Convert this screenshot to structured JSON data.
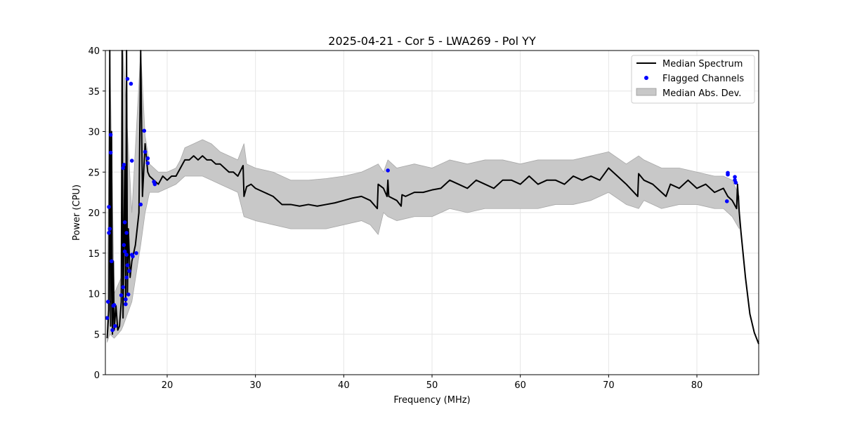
{
  "chart_data": {
    "type": "line",
    "title": "2025-04-21 - Cor 5 - LWA269 - Pol YY",
    "xlabel": "Frequency (MHz)",
    "ylabel": "Power (CPU)",
    "xlim": [
      13.0,
      87.0
    ],
    "ylim": [
      0,
      40
    ],
    "xticks": [
      20,
      30,
      40,
      50,
      60,
      70,
      80
    ],
    "yticks": [
      0,
      5,
      10,
      15,
      20,
      25,
      30,
      35,
      40
    ],
    "grid": true,
    "legend_position": "upper right",
    "legend": [
      {
        "label": "Median Spectrum",
        "kind": "line",
        "color": "#000000"
      },
      {
        "label": "Flagged Channels",
        "kind": "points",
        "color": "#0000ff"
      },
      {
        "label": "Median Abs. Dev.",
        "kind": "band",
        "color": "#c8c8c8"
      }
    ],
    "series": [
      {
        "name": "Median Spectrum",
        "color": "#000000",
        "points": [
          [
            13.2,
            4.5
          ],
          [
            13.4,
            8.0
          ],
          [
            13.5,
            40.0
          ],
          [
            13.6,
            6.0
          ],
          [
            13.7,
            30.0
          ],
          [
            13.8,
            5.0
          ],
          [
            13.9,
            14.0
          ],
          [
            14.0,
            5.5
          ],
          [
            14.2,
            8.5
          ],
          [
            14.4,
            5.5
          ],
          [
            14.6,
            6.0
          ],
          [
            14.8,
            9.0
          ],
          [
            14.9,
            40.0
          ],
          [
            15.0,
            7.0
          ],
          [
            15.2,
            26.0
          ],
          [
            15.3,
            9.0
          ],
          [
            15.4,
            40.0
          ],
          [
            15.5,
            10.0
          ],
          [
            15.6,
            18.0
          ],
          [
            15.8,
            12.0
          ],
          [
            16.0,
            14.0
          ],
          [
            16.4,
            16.0
          ],
          [
            16.8,
            20.0
          ],
          [
            17.0,
            40.0
          ],
          [
            17.2,
            22.0
          ],
          [
            17.5,
            28.5
          ],
          [
            17.8,
            25.0
          ],
          [
            18.0,
            24.5
          ],
          [
            18.5,
            24.0
          ],
          [
            19.0,
            23.5
          ],
          [
            19.5,
            24.5
          ],
          [
            20.0,
            24.0
          ],
          [
            20.5,
            24.5
          ],
          [
            21.0,
            24.5
          ],
          [
            21.5,
            25.5
          ],
          [
            22.0,
            26.5
          ],
          [
            22.5,
            26.5
          ],
          [
            23.0,
            27.0
          ],
          [
            23.5,
            26.5
          ],
          [
            24.0,
            27.0
          ],
          [
            24.5,
            26.5
          ],
          [
            25.0,
            26.5
          ],
          [
            25.5,
            26.0
          ],
          [
            26.0,
            26.0
          ],
          [
            26.5,
            25.5
          ],
          [
            27.0,
            25.0
          ],
          [
            27.5,
            25.0
          ],
          [
            28.0,
            24.5
          ],
          [
            28.6,
            25.8
          ],
          [
            28.7,
            22.0
          ],
          [
            29.0,
            23.2
          ],
          [
            29.5,
            23.5
          ],
          [
            30.0,
            23.0
          ],
          [
            31.0,
            22.5
          ],
          [
            32.0,
            22.0
          ],
          [
            33.0,
            21.0
          ],
          [
            34.0,
            21.0
          ],
          [
            35.0,
            20.8
          ],
          [
            36.0,
            21.0
          ],
          [
            37.0,
            20.8
          ],
          [
            38.0,
            21.0
          ],
          [
            39.0,
            21.2
          ],
          [
            40.0,
            21.5
          ],
          [
            41.0,
            21.8
          ],
          [
            42.0,
            22.0
          ],
          [
            43.0,
            21.5
          ],
          [
            43.8,
            20.5
          ],
          [
            43.9,
            23.5
          ],
          [
            44.5,
            23.0
          ],
          [
            44.9,
            22.0
          ],
          [
            45.0,
            24.0
          ],
          [
            45.1,
            22.0
          ],
          [
            46.0,
            21.5
          ],
          [
            46.5,
            20.8
          ],
          [
            46.6,
            22.2
          ],
          [
            47.0,
            22.0
          ],
          [
            48.0,
            22.5
          ],
          [
            49.0,
            22.5
          ],
          [
            50.0,
            22.8
          ],
          [
            51.0,
            23.0
          ],
          [
            52.0,
            24.0
          ],
          [
            53.0,
            23.5
          ],
          [
            54.0,
            23.0
          ],
          [
            55.0,
            24.0
          ],
          [
            56.0,
            23.5
          ],
          [
            57.0,
            23.0
          ],
          [
            58.0,
            24.0
          ],
          [
            59.0,
            24.0
          ],
          [
            60.0,
            23.5
          ],
          [
            61.0,
            24.5
          ],
          [
            62.0,
            23.5
          ],
          [
            63.0,
            24.0
          ],
          [
            64.0,
            24.0
          ],
          [
            65.0,
            23.5
          ],
          [
            66.0,
            24.5
          ],
          [
            67.0,
            24.0
          ],
          [
            68.0,
            24.5
          ],
          [
            69.0,
            24.0
          ],
          [
            70.0,
            25.5
          ],
          [
            71.0,
            24.5
          ],
          [
            72.0,
            23.5
          ],
          [
            73.3,
            22.0
          ],
          [
            73.4,
            24.8
          ],
          [
            74.0,
            24.0
          ],
          [
            75.0,
            23.5
          ],
          [
            76.0,
            22.5
          ],
          [
            76.5,
            22.0
          ],
          [
            77.0,
            23.5
          ],
          [
            78.0,
            23.0
          ],
          [
            79.0,
            24.0
          ],
          [
            80.0,
            23.0
          ],
          [
            81.0,
            23.5
          ],
          [
            82.0,
            22.5
          ],
          [
            83.0,
            23.0
          ],
          [
            83.5,
            22.0
          ],
          [
            84.0,
            21.5
          ],
          [
            84.5,
            20.5
          ],
          [
            84.6,
            23.5
          ],
          [
            84.8,
            20.0
          ],
          [
            85.0,
            17.5
          ],
          [
            85.5,
            12.0
          ],
          [
            86.0,
            7.5
          ],
          [
            86.5,
            5.2
          ],
          [
            87.0,
            3.8
          ]
        ]
      },
      {
        "name": "Flagged Channels",
        "color": "#0000ff",
        "points": [
          [
            13.2,
            7.0
          ],
          [
            13.3,
            9.0
          ],
          [
            13.4,
            17.5
          ],
          [
            13.4,
            20.7
          ],
          [
            13.5,
            18.0
          ],
          [
            13.6,
            29.6
          ],
          [
            13.6,
            27.4
          ],
          [
            13.7,
            14.0
          ],
          [
            13.8,
            5.5
          ],
          [
            13.9,
            8.5
          ],
          [
            14.0,
            8.6
          ],
          [
            14.1,
            6.0
          ],
          [
            14.8,
            9.8
          ],
          [
            15.0,
            10.8
          ],
          [
            15.0,
            25.5
          ],
          [
            15.1,
            25.9
          ],
          [
            15.1,
            16.0
          ],
          [
            15.2,
            15.2
          ],
          [
            15.2,
            18.8
          ],
          [
            15.3,
            8.7
          ],
          [
            15.3,
            9.3
          ],
          [
            15.4,
            14.8
          ],
          [
            15.4,
            17.5
          ],
          [
            15.4,
            12.0
          ],
          [
            15.5,
            36.5
          ],
          [
            15.5,
            13.5
          ],
          [
            15.6,
            9.9
          ],
          [
            15.7,
            12.8
          ],
          [
            15.9,
            35.9
          ],
          [
            16.0,
            26.4
          ],
          [
            16.0,
            14.8
          ],
          [
            16.1,
            14.6
          ],
          [
            16.5,
            15.0
          ],
          [
            17.0,
            21.0
          ],
          [
            17.4,
            30.1
          ],
          [
            17.5,
            27.5
          ],
          [
            17.8,
            26.7
          ],
          [
            17.8,
            26.1
          ],
          [
            18.5,
            23.8
          ],
          [
            18.6,
            23.5
          ],
          [
            45.0,
            25.2
          ],
          [
            83.5,
            24.9
          ],
          [
            83.5,
            24.7
          ],
          [
            83.4,
            21.4
          ],
          [
            84.3,
            24.4
          ],
          [
            84.3,
            24.0
          ],
          [
            84.4,
            23.7
          ]
        ]
      },
      {
        "name": "Median Abs. Dev.",
        "color": "#c8c8c8",
        "upper": [
          [
            13.2,
            6.0
          ],
          [
            13.5,
            40.0
          ],
          [
            14.0,
            10.0
          ],
          [
            14.8,
            12.0
          ],
          [
            15.0,
            40.0
          ],
          [
            16.0,
            20.0
          ],
          [
            17.0,
            40.0
          ],
          [
            17.5,
            29.5
          ],
          [
            18.0,
            26.0
          ],
          [
            19.0,
            25.0
          ],
          [
            20.0,
            25.0
          ],
          [
            21.0,
            25.5
          ],
          [
            21.5,
            26.5
          ],
          [
            22.0,
            28.0
          ],
          [
            23.0,
            28.5
          ],
          [
            24.0,
            29.0
          ],
          [
            25.0,
            28.5
          ],
          [
            26.0,
            27.5
          ],
          [
            27.0,
            27.0
          ],
          [
            28.0,
            26.5
          ],
          [
            28.7,
            28.5
          ],
          [
            29.0,
            26.0
          ],
          [
            30.0,
            25.5
          ],
          [
            32.0,
            25.0
          ],
          [
            34.0,
            24.0
          ],
          [
            36.0,
            24.0
          ],
          [
            38.0,
            24.2
          ],
          [
            40.0,
            24.5
          ],
          [
            42.0,
            25.0
          ],
          [
            43.0,
            25.5
          ],
          [
            43.9,
            26.0
          ],
          [
            44.5,
            25.0
          ],
          [
            45.0,
            26.5
          ],
          [
            46.0,
            25.5
          ],
          [
            48.0,
            26.0
          ],
          [
            50.0,
            25.5
          ],
          [
            52.0,
            26.5
          ],
          [
            54.0,
            26.0
          ],
          [
            56.0,
            26.5
          ],
          [
            58.0,
            26.5
          ],
          [
            60.0,
            26.0
          ],
          [
            62.0,
            26.5
          ],
          [
            64.0,
            26.5
          ],
          [
            66.0,
            26.5
          ],
          [
            68.0,
            27.0
          ],
          [
            70.0,
            27.5
          ],
          [
            72.0,
            26.0
          ],
          [
            73.4,
            27.0
          ],
          [
            74.0,
            26.5
          ],
          [
            76.0,
            25.5
          ],
          [
            78.0,
            25.5
          ],
          [
            80.0,
            25.0
          ],
          [
            82.0,
            24.5
          ],
          [
            83.0,
            24.5
          ],
          [
            84.0,
            24.0
          ],
          [
            84.8,
            22.0
          ]
        ],
        "lower": [
          [
            13.2,
            4.0
          ],
          [
            13.5,
            5.0
          ],
          [
            14.0,
            4.5
          ],
          [
            14.8,
            5.5
          ],
          [
            15.0,
            6.0
          ],
          [
            16.0,
            9.0
          ],
          [
            17.0,
            16.0
          ],
          [
            17.5,
            20.0
          ],
          [
            18.0,
            22.5
          ],
          [
            19.0,
            22.5
          ],
          [
            20.0,
            23.0
          ],
          [
            21.0,
            23.5
          ],
          [
            22.0,
            24.5
          ],
          [
            23.0,
            24.5
          ],
          [
            24.0,
            24.5
          ],
          [
            25.0,
            24.0
          ],
          [
            26.0,
            23.5
          ],
          [
            27.0,
            23.0
          ],
          [
            28.0,
            22.5
          ],
          [
            28.7,
            19.5
          ],
          [
            30.0,
            19.0
          ],
          [
            32.0,
            18.5
          ],
          [
            34.0,
            18.0
          ],
          [
            36.0,
            18.0
          ],
          [
            38.0,
            18.0
          ],
          [
            40.0,
            18.5
          ],
          [
            42.0,
            19.0
          ],
          [
            43.0,
            18.5
          ],
          [
            43.9,
            17.3
          ],
          [
            44.5,
            20.0
          ],
          [
            45.0,
            19.5
          ],
          [
            46.0,
            19.0
          ],
          [
            48.0,
            19.5
          ],
          [
            50.0,
            19.5
          ],
          [
            52.0,
            20.5
          ],
          [
            54.0,
            20.0
          ],
          [
            56.0,
            20.5
          ],
          [
            58.0,
            20.5
          ],
          [
            60.0,
            20.5
          ],
          [
            62.0,
            20.5
          ],
          [
            64.0,
            21.0
          ],
          [
            66.0,
            21.0
          ],
          [
            68.0,
            21.5
          ],
          [
            70.0,
            22.5
          ],
          [
            72.0,
            21.0
          ],
          [
            73.4,
            20.5
          ],
          [
            74.0,
            21.5
          ],
          [
            76.0,
            20.5
          ],
          [
            78.0,
            21.0
          ],
          [
            80.0,
            21.0
          ],
          [
            82.0,
            20.5
          ],
          [
            83.0,
            20.5
          ],
          [
            84.0,
            19.5
          ],
          [
            84.8,
            18.0
          ]
        ]
      }
    ]
  }
}
